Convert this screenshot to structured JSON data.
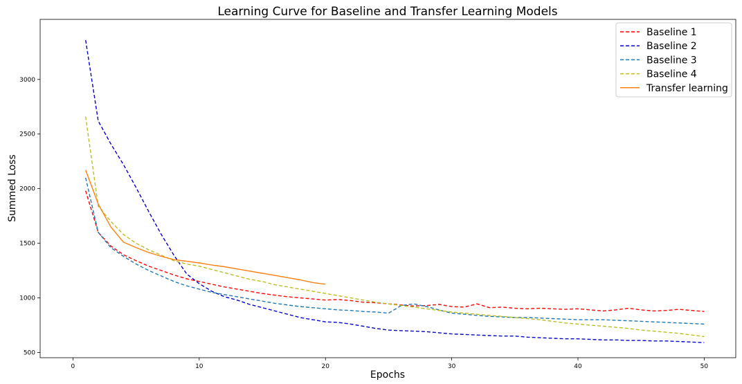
{
  "chart_data": {
    "type": "line",
    "title": "Learning Curve for Baseline and Transfer Learning Models",
    "xlabel": "Epochs",
    "ylabel": "Summed Loss",
    "xlim": [
      -2.6,
      52.5
    ],
    "ylim": [
      452,
      3550
    ],
    "xticks": [
      0,
      10,
      20,
      30,
      40,
      50
    ],
    "yticks": [
      500,
      1000,
      1500,
      2000,
      2500,
      3000
    ],
    "grid": false,
    "legend_position": "top-right",
    "series": [
      {
        "name": "Baseline 1",
        "color": "#ff0000",
        "dashed": true,
        "x": [
          1,
          2,
          3,
          4,
          5,
          6,
          7,
          8,
          9,
          10,
          11,
          12,
          13,
          14,
          15,
          16,
          17,
          18,
          19,
          20,
          21,
          22,
          23,
          24,
          25,
          26,
          27,
          28,
          29,
          30,
          31,
          32,
          33,
          34,
          35,
          36,
          37,
          38,
          39,
          40,
          41,
          42,
          43,
          44,
          45,
          46,
          47,
          48,
          49,
          50
        ],
        "y": [
          1980,
          1600,
          1475,
          1395,
          1340,
          1290,
          1250,
          1210,
          1175,
          1150,
          1125,
          1100,
          1080,
          1060,
          1040,
          1025,
          1010,
          1000,
          990,
          980,
          985,
          975,
          960,
          955,
          945,
          935,
          925,
          930,
          940,
          920,
          915,
          945,
          910,
          915,
          905,
          900,
          905,
          900,
          895,
          900,
          890,
          880,
          890,
          905,
          890,
          880,
          885,
          895,
          885,
          875
        ]
      },
      {
        "name": "Baseline 2",
        "color": "#0000cc",
        "dashed": true,
        "x": [
          1,
          2,
          3,
          4,
          5,
          6,
          7,
          8,
          9,
          10,
          11,
          12,
          13,
          14,
          15,
          16,
          17,
          18,
          19,
          20,
          21,
          22,
          23,
          24,
          25,
          26,
          27,
          28,
          29,
          30,
          31,
          32,
          33,
          34,
          35,
          36,
          37,
          38,
          39,
          40,
          41,
          42,
          43,
          44,
          45,
          46,
          47,
          48,
          49,
          50
        ],
        "y": [
          3360,
          2620,
          2410,
          2220,
          2010,
          1790,
          1580,
          1390,
          1220,
          1130,
          1060,
          1010,
          980,
          940,
          910,
          880,
          850,
          820,
          800,
          780,
          775,
          760,
          740,
          720,
          705,
          700,
          695,
          690,
          680,
          670,
          665,
          660,
          655,
          650,
          650,
          640,
          635,
          630,
          625,
          625,
          620,
          615,
          615,
          610,
          610,
          605,
          605,
          600,
          595,
          590
        ]
      },
      {
        "name": "Baseline 3",
        "color": "#1f77b4",
        "dashed": true,
        "x": [
          1,
          2,
          3,
          4,
          5,
          6,
          7,
          8,
          9,
          10,
          11,
          12,
          13,
          14,
          15,
          16,
          17,
          18,
          19,
          20,
          21,
          22,
          23,
          24,
          25,
          26,
          27,
          28,
          29,
          30,
          31,
          32,
          33,
          34,
          35,
          36,
          37,
          38,
          39,
          40,
          41,
          42,
          43,
          44,
          45,
          46,
          47,
          48,
          49,
          50
        ],
        "y": [
          2100,
          1600,
          1460,
          1380,
          1310,
          1250,
          1200,
          1150,
          1110,
          1080,
          1050,
          1030,
          1010,
          990,
          970,
          950,
          935,
          920,
          910,
          900,
          890,
          885,
          875,
          870,
          860,
          930,
          945,
          920,
          890,
          860,
          850,
          840,
          830,
          825,
          820,
          820,
          815,
          810,
          805,
          800,
          800,
          800,
          795,
          790,
          785,
          780,
          775,
          770,
          765,
          760
        ]
      },
      {
        "name": "Baseline 4",
        "color": "#bcbd22",
        "dashed": true,
        "x": [
          1,
          2,
          3,
          4,
          5,
          6,
          7,
          8,
          9,
          10,
          11,
          12,
          13,
          14,
          15,
          16,
          17,
          18,
          19,
          20,
          21,
          22,
          23,
          24,
          25,
          26,
          27,
          28,
          29,
          30,
          31,
          32,
          33,
          34,
          35,
          36,
          37,
          38,
          39,
          40,
          41,
          42,
          43,
          44,
          45,
          46,
          47,
          48,
          49,
          50
        ],
        "y": [
          2660,
          1840,
          1700,
          1580,
          1500,
          1440,
          1390,
          1340,
          1310,
          1290,
          1260,
          1230,
          1200,
          1170,
          1150,
          1120,
          1100,
          1080,
          1060,
          1040,
          1020,
          1000,
          980,
          960,
          945,
          930,
          915,
          900,
          885,
          870,
          860,
          850,
          840,
          830,
          820,
          810,
          800,
          785,
          770,
          760,
          750,
          740,
          730,
          720,
          705,
          695,
          685,
          675,
          660,
          645
        ]
      },
      {
        "name": "Transfer learning",
        "color": "#ff7f0e",
        "dashed": false,
        "x": [
          1,
          2,
          3,
          4,
          5,
          6,
          7,
          8,
          9,
          10,
          11,
          12,
          13,
          14,
          15,
          16,
          17,
          18,
          19,
          20
        ],
        "y": [
          2170,
          1860,
          1650,
          1510,
          1460,
          1415,
          1380,
          1350,
          1335,
          1320,
          1300,
          1285,
          1265,
          1245,
          1225,
          1205,
          1185,
          1165,
          1140,
          1125
        ]
      }
    ]
  }
}
